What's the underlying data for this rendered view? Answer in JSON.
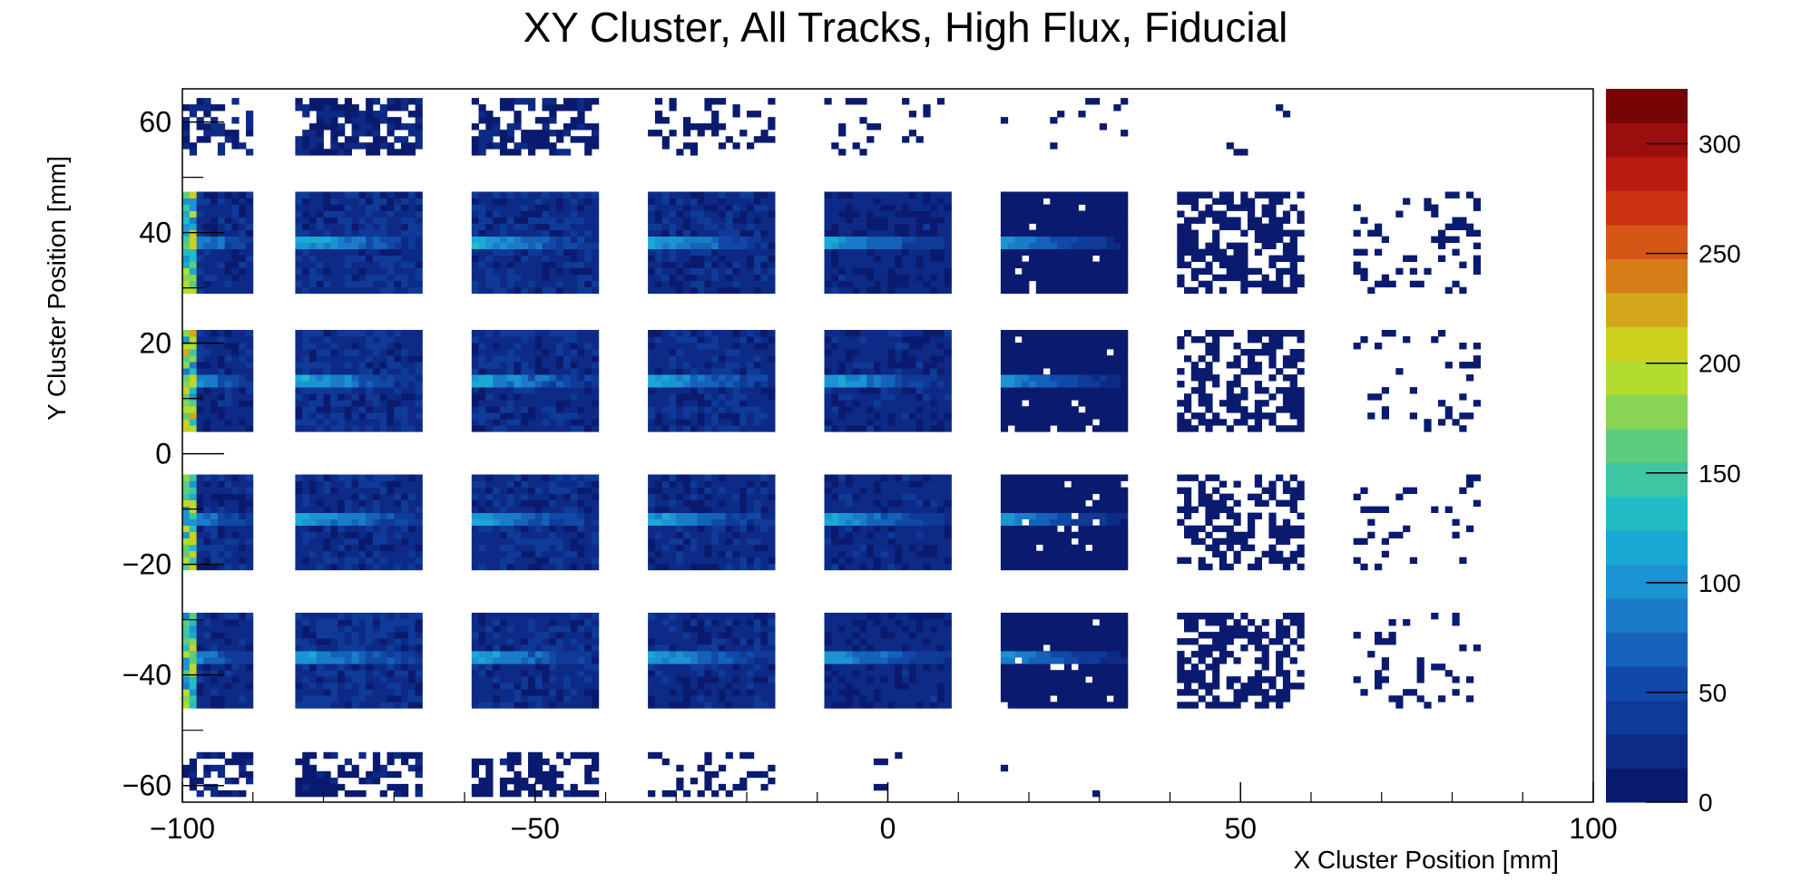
{
  "chart_data": {
    "type": "heatmap",
    "title": "XY Cluster, All Tracks, High Flux, Fiducial",
    "xlabel": "X Cluster Position [mm]",
    "ylabel": "Y Cluster Position [mm]",
    "xlim": [
      -100,
      100
    ],
    "ylim": [
      -63,
      66
    ],
    "x_ticks": [
      -100,
      -50,
      0,
      50,
      100
    ],
    "x_tick_labels": [
      "−100",
      "−50",
      "0",
      "50",
      "100"
    ],
    "y_ticks": [
      -60,
      -40,
      -20,
      0,
      20,
      40,
      60
    ],
    "y_tick_labels": [
      "−60",
      "−40",
      "−20",
      "0",
      "20",
      "40",
      "60"
    ],
    "z_range": [
      0,
      325
    ],
    "z_ticks": [
      0,
      50,
      100,
      150,
      200,
      250,
      300
    ],
    "z_tick_labels": [
      "0",
      "50",
      "100",
      "150",
      "200",
      "250",
      "300"
    ],
    "colors": {
      "low": "#0b1e78",
      "palette": [
        "#0a1b6f",
        "#0d2a86",
        "#0f3a98",
        "#1149a9",
        "#1462b9",
        "#1a7cc9",
        "#1c93d2",
        "#1aa8d4",
        "#22bcc6",
        "#3cc6a3",
        "#5ccc7c",
        "#88d454",
        "#b2dc2e",
        "#cdd01c",
        "#d4a61a",
        "#d67d18",
        "#d45716",
        "#cc3312",
        "#ba1a10",
        "#9b0e0e",
        "#770404"
      ]
    },
    "cells": {
      "x_edges": [
        [
          -100,
          -90
        ],
        [
          -84,
          -66
        ],
        [
          -59,
          -41
        ],
        [
          -34,
          -16
        ],
        [
          -9,
          9
        ],
        [
          16,
          34
        ],
        [
          41,
          59
        ],
        [
          66,
          84
        ]
      ],
      "y_edges": [
        [
          54,
          64
        ],
        [
          29,
          47
        ],
        [
          4,
          22
        ],
        [
          -21,
          -4
        ],
        [
          -46,
          -29
        ],
        [
          -62,
          -54
        ]
      ],
      "mean_counts": [
        [
          22,
          20,
          16,
          5,
          2,
          1,
          0,
          0
        ],
        [
          30,
          35,
          32,
          30,
          26,
          12,
          5,
          2
        ],
        [
          30,
          36,
          34,
          32,
          28,
          12,
          5,
          1
        ],
        [
          30,
          34,
          32,
          30,
          28,
          12,
          5,
          1
        ],
        [
          30,
          34,
          32,
          30,
          26,
          12,
          5,
          2
        ],
        [
          20,
          16,
          14,
          4,
          1,
          0,
          0,
          0
        ]
      ],
      "fill_fraction": [
        [
          0.5,
          0.75,
          0.6,
          0.25,
          0.1,
          0.05,
          0.03,
          0
        ],
        [
          1,
          1,
          1,
          1,
          1,
          0.98,
          0.6,
          0.2
        ],
        [
          1,
          1,
          1,
          1,
          1,
          0.98,
          0.55,
          0.12
        ],
        [
          1,
          1,
          1,
          1,
          1,
          0.98,
          0.55,
          0.1
        ],
        [
          1,
          1,
          1,
          1,
          1,
          0.96,
          0.55,
          0.15
        ],
        [
          0.45,
          0.55,
          0.55,
          0.25,
          0.06,
          0.02,
          0,
          0
        ]
      ],
      "hot_rows_y": [
        38,
        13,
        -12,
        -37
      ],
      "hot_row_peak": 110,
      "edge_column_x": -99.3,
      "edge_column_peak": 220
    }
  }
}
